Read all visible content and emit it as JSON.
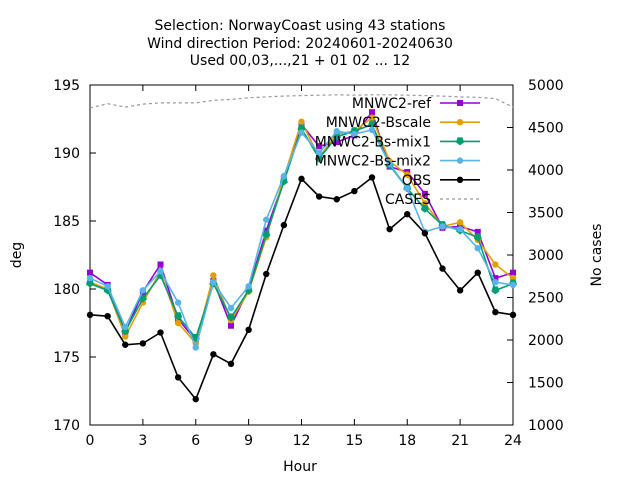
{
  "chart_data": {
    "type": "line",
    "title_lines": [
      "Selection: NorwayCoast using    43 stations",
      "Wind direction   Period: 20240601-20240630",
      "Used 00,03,...,21 + 01 02 ... 12"
    ],
    "xlabel": "Hour",
    "ylabel": "deg",
    "y2label": "No cases",
    "xlim": [
      0,
      24
    ],
    "ylim": [
      170,
      195
    ],
    "y2lim": [
      1000,
      5000
    ],
    "xticks": [
      0,
      3,
      6,
      9,
      12,
      15,
      18,
      21,
      24
    ],
    "yticks": [
      170,
      175,
      180,
      185,
      190,
      195
    ],
    "y2ticks": [
      1000,
      1500,
      2000,
      2500,
      3000,
      3500,
      4000,
      4500,
      5000
    ],
    "grid": false,
    "legend_position": "top-right",
    "x": [
      0,
      1,
      2,
      3,
      4,
      5,
      6,
      7,
      8,
      9,
      10,
      11,
      12,
      13,
      14,
      15,
      16,
      17,
      18,
      19,
      20,
      21,
      22,
      23,
      24
    ],
    "series": [
      {
        "name": "MNWC2-ref",
        "color": "#9400d3",
        "marker": "square",
        "axis": "y",
        "values": [
          181.2,
          180.3,
          176.8,
          179.8,
          181.8,
          177.8,
          176.2,
          180.6,
          177.3,
          180.0,
          184.3,
          188.0,
          192.1,
          190.5,
          190.8,
          191.3,
          193.0,
          189.0,
          188.6,
          187.0,
          184.5,
          184.6,
          184.2,
          180.8,
          181.2
        ]
      },
      {
        "name": "MNWC2-Bscale",
        "color": "#e69f00",
        "marker": "circle",
        "axis": "y",
        "values": [
          180.5,
          180.0,
          176.5,
          179.0,
          181.3,
          177.5,
          176.0,
          181.0,
          177.7,
          179.8,
          183.8,
          188.2,
          192.3,
          189.7,
          191.4,
          191.6,
          192.6,
          189.4,
          188.4,
          186.3,
          184.6,
          184.9,
          183.6,
          181.8,
          180.8
        ]
      },
      {
        "name": "MNWC2-Bs-mix1",
        "color": "#009e73",
        "marker": "triangle-up",
        "axis": "y",
        "values": [
          180.4,
          179.9,
          176.9,
          179.3,
          181.0,
          178.0,
          176.4,
          180.4,
          177.9,
          179.9,
          184.0,
          187.9,
          191.8,
          189.6,
          191.2,
          191.6,
          192.1,
          189.1,
          187.4,
          185.9,
          184.7,
          184.3,
          183.8,
          179.9,
          180.4
        ]
      },
      {
        "name": "MNWC2-Bs-mix2",
        "color": "#56b4e9",
        "marker": "circle",
        "axis": "y",
        "values": [
          180.8,
          180.2,
          177.2,
          179.9,
          181.3,
          179.0,
          175.7,
          180.5,
          178.6,
          180.2,
          185.1,
          188.3,
          191.5,
          190.0,
          191.6,
          191.4,
          191.7,
          189.2,
          187.4,
          184.2,
          184.6,
          184.4,
          183.0,
          180.5,
          180.3
        ]
      },
      {
        "name": "OBS",
        "color": "#000000",
        "marker": "circle",
        "axis": "y",
        "values": [
          178.1,
          178.0,
          175.9,
          176.0,
          176.8,
          173.5,
          171.9,
          175.2,
          174.5,
          177.0,
          181.1,
          184.7,
          188.1,
          186.8,
          186.6,
          187.2,
          188.2,
          184.4,
          185.5,
          184.1,
          181.5,
          179.9,
          181.2,
          178.3,
          178.1
        ]
      },
      {
        "name": "CASES",
        "color": "#999999",
        "marker": "none",
        "dash": true,
        "axis": "y2",
        "values": [
          4730,
          4780,
          4740,
          4775,
          4790,
          4790,
          4790,
          4820,
          4830,
          4850,
          4860,
          4870,
          4875,
          4880,
          4885,
          4880,
          4885,
          4885,
          4880,
          4875,
          4870,
          4860,
          4855,
          4840,
          4740
        ]
      }
    ]
  }
}
